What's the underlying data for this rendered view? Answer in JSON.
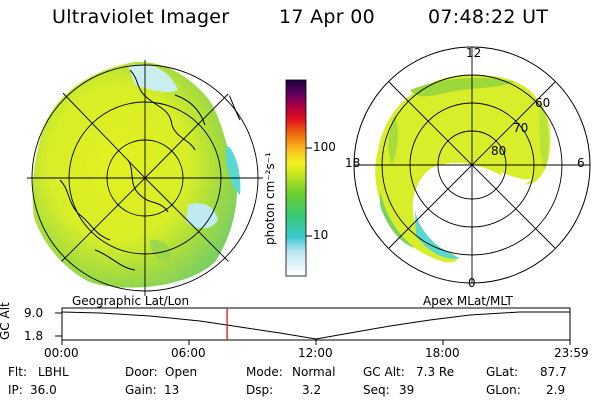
{
  "header": {
    "title": "Ultraviolet Imager",
    "date": "17 Apr 00",
    "time": "07:48:22 UT"
  },
  "colorbar": {
    "unit_label": "photon cm⁻²s⁻¹",
    "tick_labels": [
      "100",
      "10"
    ]
  },
  "left_panel": {
    "label": "Geographic Lat/Lon"
  },
  "right_panel": {
    "label": "Apex MLat/MLT",
    "mlt_labels": {
      "top": "12",
      "left": "18",
      "right": "6",
      "bottom": "0"
    },
    "lat_labels": [
      "60",
      "70",
      "80"
    ]
  },
  "timeline": {
    "axis_label": "GC Alt",
    "y_ticks": [
      "9.0",
      "1.8"
    ],
    "x_ticks": [
      "00:00",
      "06:00",
      "12:00",
      "18:00",
      "23:59"
    ],
    "marker_time": "07:48",
    "marker_fraction": 0.325
  },
  "info": {
    "row1": [
      {
        "label": "Flt:",
        "value": "LBHL"
      },
      {
        "label": "Door:",
        "value": "Open"
      },
      {
        "label": "Mode:",
        "value": "Normal"
      },
      {
        "label": "GC Alt:",
        "value": "7.3 Re"
      },
      {
        "label": "GLat:",
        "value": "87.7"
      }
    ],
    "row2": [
      {
        "label": "IP:",
        "value": "36.0"
      },
      {
        "label": "Gain:",
        "value": "13"
      },
      {
        "label": "Dsp:",
        "value": "3.2"
      },
      {
        "label": "Seq:",
        "value": "39"
      },
      {
        "label": "GLon:",
        "value": "2.9"
      }
    ]
  },
  "colors": {
    "aurora_yellow": "#e2f020",
    "aurora_green": "#9cd83a",
    "aurora_cyan": "#58d8d0",
    "marker": "#e00000"
  }
}
